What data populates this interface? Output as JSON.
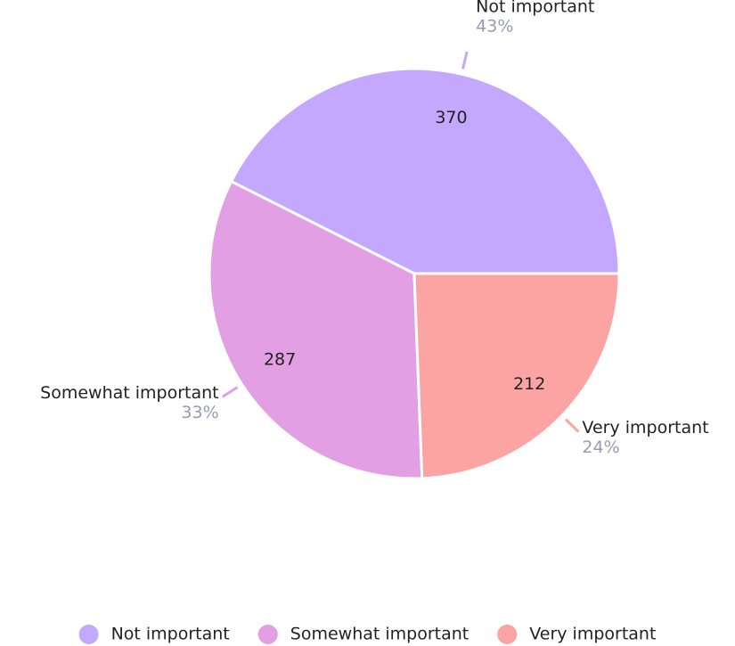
{
  "chart_data": {
    "type": "pie",
    "categories": [
      "Not important",
      "Somewhat important",
      "Very important"
    ],
    "values": [
      370,
      287,
      212
    ],
    "percent_labels": [
      "43%",
      "33%",
      "24%"
    ],
    "colors": [
      "#c4a8ff",
      "#e29fe4",
      "#fca3a3"
    ],
    "legend": "bottom"
  }
}
